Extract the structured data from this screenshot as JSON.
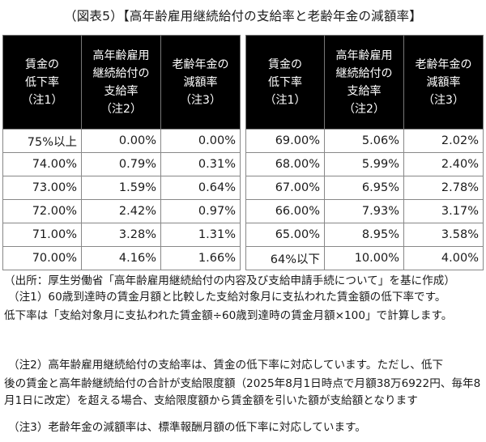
{
  "title": "（図表5）【高年齢雇用継続給付の支給率と老齢年金の減額率】",
  "table": {
    "headers": [
      [
        "賃金の",
        "低下率",
        "（注1）"
      ],
      [
        "高年齢雇用",
        "継続給付の",
        "支給率",
        "（注2）"
      ],
      [
        "老齢年金の",
        "減額率",
        "（注3）"
      ]
    ],
    "left_rows": [
      [
        "75%以上",
        "0.00%",
        "0.00%"
      ],
      [
        "74.00%",
        "0.79%",
        "0.31%"
      ],
      [
        "73.00%",
        "1.59%",
        "0.64%"
      ],
      [
        "72.00%",
        "2.42%",
        "0.97%"
      ],
      [
        "71.00%",
        "3.28%",
        "1.31%"
      ],
      [
        "70.00%",
        "4.16%",
        "1.66%"
      ]
    ],
    "right_rows": [
      [
        "69.00%",
        "5.06%",
        "2.02%"
      ],
      [
        "68.00%",
        "5.99%",
        "2.40%"
      ],
      [
        "67.00%",
        "6.95%",
        "2.78%"
      ],
      [
        "66.00%",
        "7.93%",
        "3.17%"
      ],
      [
        "65.00%",
        "8.95%",
        "3.58%"
      ],
      [
        "64%以下",
        "10.00%",
        "4.00%"
      ]
    ]
  },
  "notes": {
    "source": "（出所：厚生労働省「高年齢雇用継続給付の内容及び支給申請手続について」を基に作成）",
    "note1_line1": "（注1）60歳到達時の賃金月額と比較した支給対象月に支払われた賃金額の低下率です。",
    "note1_line2": "低下率は「支給対象月に支払われた賃金額÷60歳到達時の賃金月額×100」で計算します。",
    "note2_line1": "（注2）高年齢雇用継続給付の支給率は、賃金の低下率に対応しています。ただし、低下",
    "note2_line2": "後の賃金と高年齢継続給付の合計が支給限度額（2025年8月1日時点で月額38万6922円、毎年8月1日に改定）を超える場合、支給限度額から賃金額を引いた額が支給額となります",
    "note3": "（注3）老齢年金の減額率は、標準報酬月額の低下率に対応しています。"
  }
}
